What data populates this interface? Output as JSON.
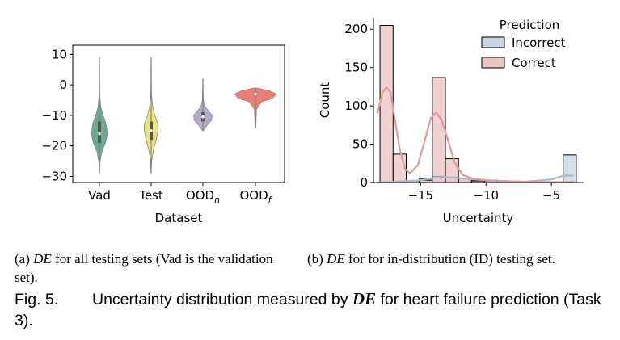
{
  "chart_data": [
    {
      "type": "violin",
      "xlabel": "Dataset",
      "ylabel": "",
      "ylim": [
        -32,
        13
      ],
      "yticks": [
        10,
        0,
        -10,
        -20,
        -30
      ],
      "categories": [
        {
          "label": "Vad",
          "sub": ""
        },
        {
          "label": "Test",
          "sub": ""
        },
        {
          "label": "OOD",
          "sub": "n"
        },
        {
          "label": "OOD",
          "sub": "f"
        }
      ],
      "violins": [
        {
          "min": -29,
          "max": 9,
          "q1": -19,
          "median": -16,
          "q3": -12,
          "color": "#5fa68a",
          "profile": [
            [
              -29,
              0.02
            ],
            [
              -25,
              0.08
            ],
            [
              -22,
              0.3
            ],
            [
              -19,
              0.75
            ],
            [
              -16,
              1.0
            ],
            [
              -13,
              0.85
            ],
            [
              -10,
              0.45
            ],
            [
              -7,
              0.15
            ],
            [
              -3,
              0.05
            ],
            [
              2,
              0.03
            ],
            [
              9,
              0.02
            ]
          ]
        },
        {
          "min": -29,
          "max": 9,
          "q1": -18,
          "median": -15,
          "q3": -12,
          "color": "#e9e27c",
          "profile": [
            [
              -29,
              0.02
            ],
            [
              -25,
              0.07
            ],
            [
              -21,
              0.35
            ],
            [
              -18,
              0.7
            ],
            [
              -15,
              0.95
            ],
            [
              -13,
              0.95
            ],
            [
              -10,
              0.5
            ],
            [
              -7,
              0.2
            ],
            [
              -3,
              0.06
            ],
            [
              2,
              0.03
            ],
            [
              9,
              0.02
            ]
          ]
        },
        {
          "min": -15,
          "max": 2,
          "q1": -12,
          "median": -10.5,
          "q3": -9,
          "color": "#b0a8c4",
          "profile": [
            [
              -15,
              0.05
            ],
            [
              -14,
              0.25
            ],
            [
              -13,
              0.5
            ],
            [
              -11.5,
              0.9
            ],
            [
              -10,
              0.95
            ],
            [
              -8.5,
              0.55
            ],
            [
              -7,
              0.2
            ],
            [
              -5,
              0.05
            ],
            [
              -2,
              0.03
            ],
            [
              2,
              0.02
            ]
          ]
        },
        {
          "min": -14,
          "max": -1,
          "q1": -3.5,
          "median": -3,
          "q3": -2.5,
          "color": "#e8796e",
          "profile": [
            [
              -14,
              0.02
            ],
            [
              -8,
              0.05
            ],
            [
              -5.5,
              0.3
            ],
            [
              -4.5,
              0.8
            ],
            [
              -3,
              1.0
            ],
            [
              -2,
              0.7
            ],
            [
              -1.2,
              0.2
            ],
            [
              -1,
              0.02
            ]
          ]
        }
      ]
    },
    {
      "type": "histogram",
      "xlabel": "Uncertainty",
      "ylabel": "Count",
      "xlim": [
        -18.6,
        -2.6
      ],
      "ylim": [
        0,
        215
      ],
      "xticks": [
        -15,
        -10,
        -5
      ],
      "yticks": [
        0,
        50,
        100,
        150,
        200
      ],
      "legend_title": "Prediction",
      "legend_position": "top-right",
      "bin_edges": [
        -18.1,
        -17.1,
        -16.1,
        -15.1,
        -14.1,
        -13.1,
        -12.1,
        -11.1,
        -10.1,
        -9.1,
        -8.1,
        -7.1,
        -6.1,
        -5.1,
        -4.1,
        -3.1
      ],
      "series": [
        {
          "name": "Incorrect",
          "color": "#c9d3e2",
          "line_color": "#a8bccd",
          "counts": [
            0,
            0,
            0,
            5,
            8,
            7,
            5,
            3,
            3,
            0,
            0,
            0,
            0,
            0,
            36
          ],
          "kde": [
            [
              -18.3,
              0
            ],
            [
              -17,
              1
            ],
            [
              -15,
              3
            ],
            [
              -14,
              6
            ],
            [
              -13,
              7
            ],
            [
              -11,
              4
            ],
            [
              -9,
              2
            ],
            [
              -7,
              1
            ],
            [
              -5,
              4
            ],
            [
              -4,
              9
            ],
            [
              -3.3,
              9
            ]
          ]
        },
        {
          "name": "Correct",
          "color": "#ecc3c3",
          "line_color": "#de9d9c",
          "counts": [
            205,
            37,
            2,
            3,
            137,
            31,
            5,
            2,
            2,
            0,
            0,
            0,
            0,
            0,
            0
          ],
          "kde": [
            [
              -18.3,
              90
            ],
            [
              -17.9,
              118
            ],
            [
              -17.6,
              124
            ],
            [
              -17.3,
              118
            ],
            [
              -17,
              86
            ],
            [
              -16.6,
              44
            ],
            [
              -16.2,
              18
            ],
            [
              -15.8,
              12
            ],
            [
              -15.2,
              23
            ],
            [
              -14.6,
              60
            ],
            [
              -14.2,
              85
            ],
            [
              -13.8,
              91
            ],
            [
              -13.4,
              82
            ],
            [
              -12.9,
              55
            ],
            [
              -12.4,
              26
            ],
            [
              -11.8,
              10
            ],
            [
              -11,
              5
            ],
            [
              -10,
              3
            ],
            [
              -9,
              2
            ],
            [
              -7,
              1
            ],
            [
              -5,
              0.5
            ],
            [
              -3.3,
              0.5
            ]
          ]
        }
      ]
    }
  ],
  "captions": {
    "a_prefix": "(a) ",
    "a_math": "DE",
    "a_rest": " for all testing sets (Vad is the validation set).",
    "b_prefix": "(b) ",
    "b_math": "DE",
    "b_rest": " for for in-distribution (ID) testing set.",
    "figure_label": "Fig. 5.",
    "figure_text_1": "Uncertainty distribution measured by ",
    "figure_math": "DE",
    "figure_text_2": " for heart failure prediction (Task 3)."
  }
}
